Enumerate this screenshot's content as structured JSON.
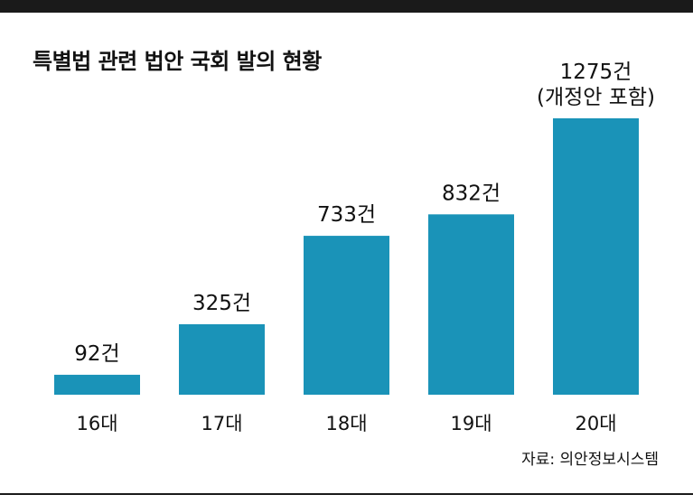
{
  "title": "특별법 관련 법안 국회 발의 현황",
  "source": "자료: 의안정보시스템",
  "chart_data": {
    "type": "bar",
    "title": "특별법 관련 법안 국회 발의 현황",
    "categories": [
      "16대",
      "17대",
      "18대",
      "19대",
      "20대"
    ],
    "values": [
      92,
      325,
      733,
      832,
      1275
    ],
    "value_labels": [
      "92건",
      "325건",
      "733건",
      "832건",
      "1275건"
    ],
    "annotations": [
      "",
      "",
      "",
      "",
      "(개정안 포함)"
    ],
    "xlabel": "",
    "ylabel": "",
    "ylim": [
      0,
      1275
    ],
    "grid": false,
    "legend": "none",
    "bar_color": "#1a93b8"
  }
}
